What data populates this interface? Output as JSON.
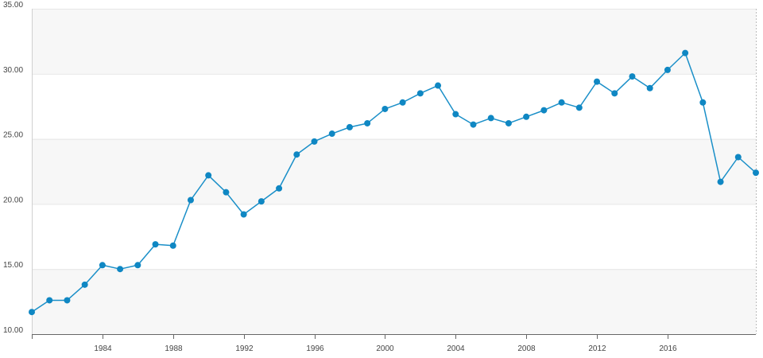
{
  "chart_data": {
    "type": "line",
    "title": "",
    "xlabel": "",
    "ylabel": "",
    "ylim": [
      10,
      35
    ],
    "xlim": [
      1980,
      2021
    ],
    "grid": true,
    "banded_background": true,
    "colors": {
      "line": "#1a8fc8",
      "marker": "#0f87c3",
      "band": "#f7f7f7",
      "grid": "#e6e6e6",
      "axis": "#666666",
      "text": "#444444"
    },
    "y_ticks": [
      {
        "value": 10,
        "label": "10.00"
      },
      {
        "value": 15,
        "label": "15.00"
      },
      {
        "value": 20,
        "label": "20.00"
      },
      {
        "value": 25,
        "label": "25.00"
      },
      {
        "value": 30,
        "label": "30.00"
      },
      {
        "value": 35,
        "label": "35.00"
      }
    ],
    "x_ticks": [
      {
        "value": 1984,
        "label": "1984"
      },
      {
        "value": 1988,
        "label": "1988"
      },
      {
        "value": 1992,
        "label": "1992"
      },
      {
        "value": 1996,
        "label": "1996"
      },
      {
        "value": 2000,
        "label": "2000"
      },
      {
        "value": 2004,
        "label": "2004"
      },
      {
        "value": 2008,
        "label": "2008"
      },
      {
        "value": 2012,
        "label": "2012"
      },
      {
        "value": 2016,
        "label": "2016"
      }
    ],
    "series": [
      {
        "x": [
          1980,
          1981,
          1982,
          1983,
          1984,
          1985,
          1986,
          1987,
          1988,
          1989,
          1990,
          1991,
          1992,
          1993,
          1994,
          1995,
          1996,
          1997,
          1998,
          1999,
          2000,
          2001,
          2002,
          2003,
          2004,
          2005,
          2006,
          2007,
          2008,
          2009,
          2010,
          2011,
          2012,
          2013,
          2014,
          2015,
          2016,
          2017,
          2018,
          2019,
          2020,
          2021
        ],
        "values": [
          11.7,
          12.6,
          12.6,
          13.8,
          15.3,
          15.0,
          15.3,
          16.9,
          16.8,
          20.3,
          22.2,
          20.9,
          19.2,
          20.2,
          21.2,
          23.8,
          24.8,
          25.4,
          25.9,
          26.2,
          27.3,
          27.8,
          28.5,
          29.1,
          26.9,
          26.1,
          26.6,
          26.2,
          26.7,
          27.2,
          27.8,
          27.4,
          29.4,
          28.5,
          29.8,
          28.9,
          30.3,
          31.6,
          27.8,
          21.7,
          23.6,
          22.4
        ]
      }
    ]
  }
}
